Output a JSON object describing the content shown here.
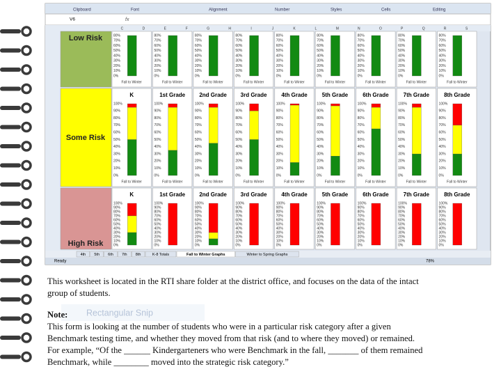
{
  "ribbon": [
    "Clipboard",
    "Font",
    "Alignment",
    "Number",
    "Styles",
    "Cells",
    "Editing"
  ],
  "name_box": "V6",
  "formula_icon": "fx",
  "columns": [
    "C",
    "D",
    "E",
    "F",
    "G",
    "H",
    "I",
    "J",
    "K",
    "L",
    "M",
    "N",
    "O",
    "P",
    "Q",
    "R",
    "S"
  ],
  "risk_rows": [
    "Low Risk",
    "Some Risk",
    "High Risk"
  ],
  "grades": [
    "K",
    "1st Grade",
    "2nd Grade",
    "3rd Grade",
    "4th Grade",
    "5th Grade",
    "6th Grade",
    "7th Grade",
    "8th Grade"
  ],
  "axis_labels": [
    "100%",
    "90%",
    "80%",
    "70%",
    "60%",
    "50%",
    "40%",
    "30%",
    "20%",
    "10%",
    "0%"
  ],
  "chart_caption": "Fall to Winter",
  "sheet_tabs": [
    "4th",
    "5th",
    "6th",
    "7th",
    "8th",
    "K-8 Totals",
    "Fall to Winter Graphs",
    "Winter to Spring Graphs"
  ],
  "status": "Ready",
  "zoom": "78%",
  "snip": "Rectangular Snip",
  "paragraph1": [
    "This worksheet is located in the RTI share folder at the district office, and focuses on the data of the intact",
    "group of students."
  ],
  "note_heading": "Note:",
  "paragraph2": [
    "This form is looking at the number of students who were in a particular risk category after a given",
    "Benchmark testing time, and whether they moved from that risk (and to where they moved) or remained.",
    "For example, “Of the ______ Kindergarteners who were Benchmark in the fall, _______ of them remained",
    "Benchmark, while ________ moved into the strategic risk category.”"
  ]
}
